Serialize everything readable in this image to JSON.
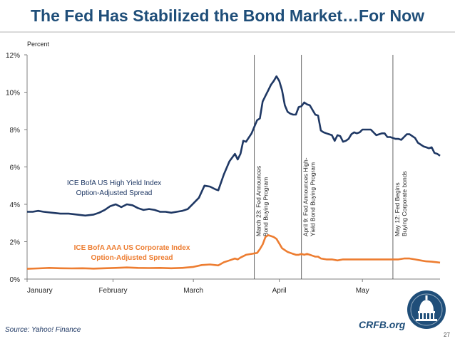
{
  "title": "The Fed Has Stabilized the Bond Market…For Now",
  "source": "Source: Yahoo! Finance",
  "brand": "CRFB.org",
  "page_number": "27",
  "logo_icon": "capitol-dome-icon",
  "colors": {
    "title": "#1f4e79",
    "high_yield": "#1f3864",
    "aaa": "#ed7d31",
    "axis": "#7f7f7f",
    "grid": "#d9d9d9"
  },
  "chart_data": {
    "type": "line",
    "title": "The Fed Has Stabilized the Bond Market…For Now",
    "ylabel": "Percent",
    "xlabel": "",
    "ylim": [
      0,
      12
    ],
    "xlim": [
      1,
      150
    ],
    "y_ticks": [
      0,
      2,
      4,
      6,
      8,
      10,
      12
    ],
    "y_tick_labels": [
      "0%",
      "2%",
      "4%",
      "6%",
      "8%",
      "10%",
      "12%"
    ],
    "x_ticks": [
      {
        "day": 1,
        "label": "January"
      },
      {
        "day": 32,
        "label": "February"
      },
      {
        "day": 61,
        "label": "March"
      },
      {
        "day": 92,
        "label": "April"
      },
      {
        "day": 122,
        "label": "May"
      }
    ],
    "grid": false,
    "series": [
      {
        "name": "ICE BofA US High Yield Index Option-Adjusted Spread",
        "label_lines": [
          "ICE BofA US High Yield Index",
          "Option-Adjusted Spread"
        ],
        "color": "#1f3864",
        "points": [
          [
            1,
            3.6
          ],
          [
            3,
            3.6
          ],
          [
            5,
            3.65
          ],
          [
            7,
            3.6
          ],
          [
            10,
            3.55
          ],
          [
            13,
            3.5
          ],
          [
            16,
            3.5
          ],
          [
            19,
            3.45
          ],
          [
            22,
            3.4
          ],
          [
            25,
            3.45
          ],
          [
            27,
            3.55
          ],
          [
            29,
            3.7
          ],
          [
            31,
            3.9
          ],
          [
            33,
            4.0
          ],
          [
            35,
            3.85
          ],
          [
            37,
            4.0
          ],
          [
            39,
            3.95
          ],
          [
            41,
            3.8
          ],
          [
            43,
            3.7
          ],
          [
            45,
            3.75
          ],
          [
            47,
            3.7
          ],
          [
            49,
            3.6
          ],
          [
            51,
            3.6
          ],
          [
            53,
            3.55
          ],
          [
            55,
            3.6
          ],
          [
            57,
            3.65
          ],
          [
            59,
            3.75
          ],
          [
            61,
            4.05
          ],
          [
            63,
            4.35
          ],
          [
            65,
            5.0
          ],
          [
            67,
            4.95
          ],
          [
            69,
            4.8
          ],
          [
            70,
            4.75
          ],
          [
            72,
            5.6
          ],
          [
            74,
            6.3
          ],
          [
            76,
            6.7
          ],
          [
            77,
            6.4
          ],
          [
            78,
            6.7
          ],
          [
            79,
            7.4
          ],
          [
            80,
            7.35
          ],
          [
            82,
            7.8
          ],
          [
            84,
            8.5
          ],
          [
            85,
            8.6
          ],
          [
            86,
            9.5
          ],
          [
            87,
            9.8
          ],
          [
            88,
            10.1
          ],
          [
            89,
            10.4
          ],
          [
            90,
            10.6
          ],
          [
            91,
            10.85
          ],
          [
            92,
            10.6
          ],
          [
            93,
            10.1
          ],
          [
            94,
            9.3
          ],
          [
            95,
            8.95
          ],
          [
            96,
            8.85
          ],
          [
            97,
            8.8
          ],
          [
            98,
            8.8
          ],
          [
            99,
            9.2
          ],
          [
            100,
            9.25
          ],
          [
            101,
            9.45
          ],
          [
            102,
            9.35
          ],
          [
            103,
            9.3
          ],
          [
            104,
            9.05
          ],
          [
            105,
            8.8
          ],
          [
            106,
            8.75
          ],
          [
            107,
            7.95
          ],
          [
            108,
            7.85
          ],
          [
            109,
            7.8
          ],
          [
            110,
            7.75
          ],
          [
            111,
            7.7
          ],
          [
            112,
            7.4
          ],
          [
            113,
            7.7
          ],
          [
            114,
            7.65
          ],
          [
            115,
            7.35
          ],
          [
            116,
            7.4
          ],
          [
            117,
            7.5
          ],
          [
            118,
            7.75
          ],
          [
            119,
            7.85
          ],
          [
            120,
            7.8
          ],
          [
            121,
            7.85
          ],
          [
            122,
            8.0
          ],
          [
            123,
            8.0
          ],
          [
            124,
            8.0
          ],
          [
            125,
            8.0
          ],
          [
            126,
            7.85
          ],
          [
            127,
            7.7
          ],
          [
            128,
            7.75
          ],
          [
            129,
            7.8
          ],
          [
            130,
            7.8
          ],
          [
            131,
            7.6
          ],
          [
            132,
            7.6
          ],
          [
            133,
            7.55
          ],
          [
            134,
            7.5
          ],
          [
            135,
            7.5
          ],
          [
            136,
            7.45
          ],
          [
            137,
            7.6
          ],
          [
            138,
            7.75
          ],
          [
            139,
            7.75
          ],
          [
            140,
            7.65
          ],
          [
            141,
            7.55
          ],
          [
            142,
            7.3
          ],
          [
            143,
            7.2
          ],
          [
            144,
            7.1
          ],
          [
            145,
            7.05
          ],
          [
            146,
            7.0
          ],
          [
            147,
            7.05
          ],
          [
            148,
            6.75
          ],
          [
            149,
            6.7
          ],
          [
            150,
            6.6
          ]
        ]
      },
      {
        "name": "ICE BofA AAA US Corporate Index Option-Adjusted Spread",
        "label_lines": [
          "ICE BofA AAA US Corporate Index",
          "Option-Adjusted Spread"
        ],
        "color": "#ed7d31",
        "points": [
          [
            1,
            0.55
          ],
          [
            5,
            0.57
          ],
          [
            9,
            0.6
          ],
          [
            13,
            0.58
          ],
          [
            17,
            0.57
          ],
          [
            21,
            0.58
          ],
          [
            25,
            0.56
          ],
          [
            29,
            0.58
          ],
          [
            33,
            0.6
          ],
          [
            37,
            0.62
          ],
          [
            41,
            0.6
          ],
          [
            45,
            0.59
          ],
          [
            49,
            0.6
          ],
          [
            53,
            0.58
          ],
          [
            57,
            0.6
          ],
          [
            61,
            0.65
          ],
          [
            64,
            0.75
          ],
          [
            67,
            0.78
          ],
          [
            70,
            0.73
          ],
          [
            72,
            0.9
          ],
          [
            74,
            1.0
          ],
          [
            76,
            1.1
          ],
          [
            77,
            1.05
          ],
          [
            78,
            1.15
          ],
          [
            80,
            1.3
          ],
          [
            82,
            1.35
          ],
          [
            84,
            1.4
          ],
          [
            85,
            1.6
          ],
          [
            86,
            1.85
          ],
          [
            87,
            2.25
          ],
          [
            88,
            2.35
          ],
          [
            89,
            2.3
          ],
          [
            90,
            2.25
          ],
          [
            91,
            2.15
          ],
          [
            92,
            1.9
          ],
          [
            93,
            1.65
          ],
          [
            94,
            1.55
          ],
          [
            95,
            1.45
          ],
          [
            96,
            1.4
          ],
          [
            97,
            1.35
          ],
          [
            98,
            1.3
          ],
          [
            99,
            1.3
          ],
          [
            100,
            1.35
          ],
          [
            101,
            1.3
          ],
          [
            102,
            1.35
          ],
          [
            103,
            1.3
          ],
          [
            104,
            1.25
          ],
          [
            105,
            1.2
          ],
          [
            106,
            1.2
          ],
          [
            107,
            1.1
          ],
          [
            109,
            1.05
          ],
          [
            111,
            1.05
          ],
          [
            113,
            1.0
          ],
          [
            115,
            1.05
          ],
          [
            117,
            1.05
          ],
          [
            119,
            1.05
          ],
          [
            121,
            1.05
          ],
          [
            124,
            1.05
          ],
          [
            127,
            1.05
          ],
          [
            130,
            1.05
          ],
          [
            133,
            1.05
          ],
          [
            135,
            1.05
          ],
          [
            137,
            1.1
          ],
          [
            139,
            1.1
          ],
          [
            141,
            1.05
          ],
          [
            143,
            1.0
          ],
          [
            145,
            0.95
          ],
          [
            147,
            0.93
          ],
          [
            149,
            0.9
          ],
          [
            150,
            0.88
          ]
        ]
      }
    ],
    "annotations": [
      {
        "day": 83,
        "lines": [
          "March 23: Fed Announces",
          "Bond Buying Program"
        ]
      },
      {
        "day": 100,
        "lines": [
          "April 9: Fed Announces High-",
          "Yield Bond Buying Program"
        ]
      },
      {
        "day": 133,
        "lines": [
          "May 12: Fed Begins",
          "Buying Corporate bonds"
        ]
      }
    ]
  }
}
